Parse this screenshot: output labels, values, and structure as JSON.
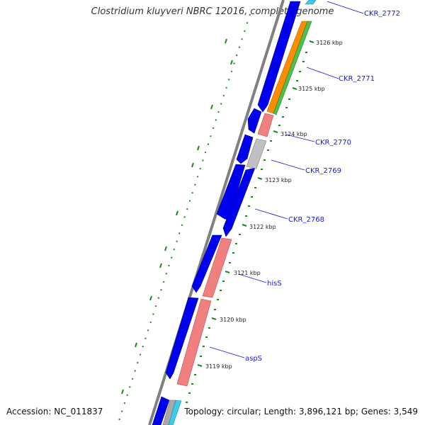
{
  "title": "Clostridium kluyveri NBRC 12016, complete genome",
  "accession_text": "Accession: NC_011837",
  "summary_text": "Topology: circular; Length: 3,896,121 bp; Genes: 3,549",
  "colors": {
    "forward_gene": "#0000ee",
    "gc_skew": "#1a8a1a",
    "backbone": "#808080",
    "label": "#1a1acc"
  },
  "kbp_ticks": [
    {
      "label": "3119 kbp"
    },
    {
      "label": "3120 kbp"
    },
    {
      "label": "3121 kbp"
    },
    {
      "label": "3122 kbp"
    },
    {
      "label": "3123 kbp"
    },
    {
      "label": "3124 kbp"
    },
    {
      "label": "3125 kbp"
    },
    {
      "label": "3126 kbp"
    }
  ],
  "gene_labels": [
    {
      "label": "CKR_2772"
    },
    {
      "label": "CKR_2771"
    },
    {
      "label": "CKR_2770"
    },
    {
      "label": "CKR_2769"
    },
    {
      "label": "CKR_2768"
    },
    {
      "label": "hisS"
    },
    {
      "label": "aspS"
    }
  ],
  "reverse_genes": [
    {
      "name": "CKR_2772",
      "color": "#40c8e8"
    },
    {
      "name": "CKR_2771-a",
      "color": "#ff8c00"
    },
    {
      "name": "CKR_2771-b",
      "color": "#4cc24c"
    },
    {
      "name": "CKR_2770",
      "color": "#f08080"
    },
    {
      "name": "CKR_2769",
      "color": "#c0c0c0"
    },
    {
      "name": "hisS",
      "color": "#f08080"
    },
    {
      "name": "aspS",
      "color": "#f08080"
    },
    {
      "name": "partial-grey",
      "color": "#a9a9a9"
    },
    {
      "name": "partial-cyan",
      "color": "#40c8e8"
    }
  ]
}
